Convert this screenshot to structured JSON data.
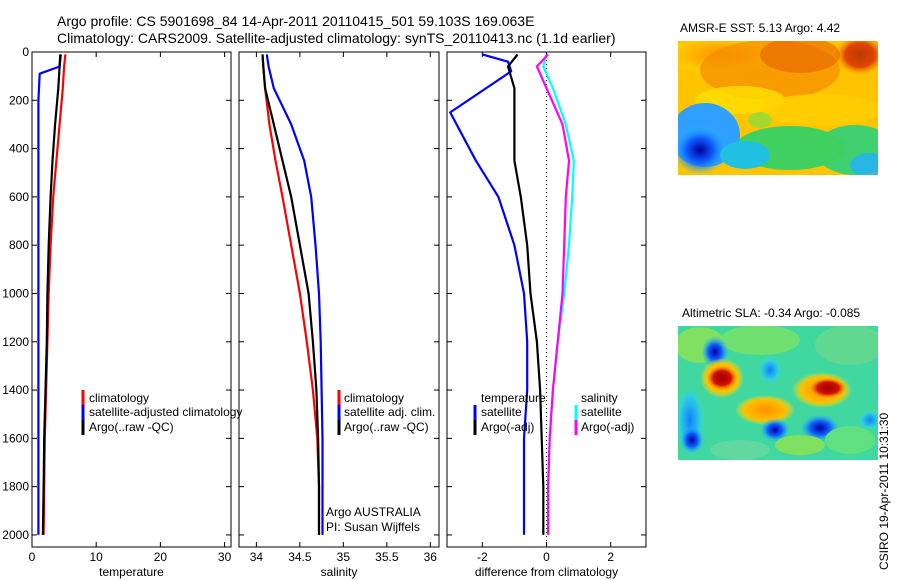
{
  "title_line1": "Argo profile: CS 5901698_84 14-Apr-2011 20110415_501 59.103S 169.063E",
  "title_line2": "Climatology: CARS2009. Satellite-adjusted climatology: synTS_20110413.nc (1.1d earlier)",
  "credit": "CSIRO 19-Apr-2011 10:31:30",
  "colors": {
    "red": "#ff0000",
    "blue": "#0000ff",
    "black": "#000000",
    "cyan": "#00ffff",
    "magenta": "#ff00ff"
  },
  "chart_data": [
    {
      "id": "temperature",
      "type": "line",
      "xlabel": "temperature",
      "ylabel": "",
      "xlim": [
        0,
        31
      ],
      "ylim": [
        2050,
        0
      ],
      "xticks": [
        0,
        10,
        20,
        30
      ],
      "yticks": [
        0,
        200,
        400,
        600,
        800,
        1000,
        1200,
        1400,
        1600,
        1800,
        2000
      ],
      "series": [
        {
          "name": "climatology",
          "color": "#ff0000",
          "x": [
            5.2,
            5.0,
            4.8,
            4.3,
            3.8,
            3.3,
            2.9,
            2.6,
            2.4,
            2.2,
            2.0,
            1.9,
            1.8
          ],
          "y": [
            10,
            60,
            150,
            300,
            450,
            600,
            800,
            1000,
            1200,
            1400,
            1600,
            1800,
            2000
          ]
        },
        {
          "name": "satellite-adjusted climatology",
          "color": "#0000ff",
          "x": [
            4.5,
            4.3,
            1.2,
            1.0,
            1.0,
            1.0,
            1.0,
            1.0,
            1.0,
            1.0,
            1.0,
            1.0
          ],
          "y": [
            10,
            60,
            90,
            200,
            400,
            600,
            800,
            1000,
            1200,
            1400,
            1700,
            2000
          ]
        },
        {
          "name": "Argo(..raw -QC)",
          "color": "#000000",
          "x": [
            4.4,
            4.3,
            4.1,
            3.6,
            3.2,
            2.9,
            2.6,
            2.4,
            2.3,
            2.1,
            1.9,
            1.8,
            1.7
          ],
          "y": [
            10,
            60,
            150,
            300,
            450,
            600,
            800,
            1000,
            1200,
            1400,
            1600,
            1800,
            2000
          ]
        }
      ]
    },
    {
      "id": "salinity",
      "type": "line",
      "xlabel": "salinity",
      "ylabel": "",
      "xlim": [
        33.8,
        36.1
      ],
      "ylim": [
        2050,
        0
      ],
      "xticks": [
        34,
        34.5,
        35,
        35.5,
        36
      ],
      "xticklabels": [
        "34",
        "34.5",
        "35",
        "35.5",
        "36"
      ],
      "annotation1": "Argo AUSTRALIA",
      "annotation2": "PI: Susan Wijffels",
      "series": [
        {
          "name": "climatology",
          "color": "#ff0000",
          "x": [
            34.07,
            34.08,
            34.1,
            34.15,
            34.22,
            34.3,
            34.4,
            34.5,
            34.58,
            34.65,
            34.7,
            34.72,
            34.72
          ],
          "y": [
            10,
            60,
            150,
            300,
            450,
            600,
            800,
            1000,
            1200,
            1400,
            1600,
            1800,
            2000
          ]
        },
        {
          "name": "satellite adj. clim.",
          "color": "#0000ff",
          "x": [
            34.12,
            34.14,
            34.2,
            34.4,
            34.55,
            34.63,
            34.68,
            34.72,
            34.74,
            34.75,
            34.76,
            34.76,
            34.76
          ],
          "y": [
            10,
            60,
            150,
            300,
            450,
            600,
            800,
            1000,
            1200,
            1400,
            1600,
            1800,
            2000
          ]
        },
        {
          "name": "Argo(..raw -QC)",
          "color": "#000000",
          "x": [
            34.07,
            34.08,
            34.1,
            34.2,
            34.3,
            34.4,
            34.5,
            34.6,
            34.65,
            34.69,
            34.71,
            34.72,
            34.72
          ],
          "y": [
            10,
            60,
            150,
            300,
            450,
            600,
            800,
            1000,
            1200,
            1400,
            1600,
            1800,
            2000
          ]
        }
      ]
    },
    {
      "id": "difference",
      "type": "line",
      "xlabel": "difference from climatology",
      "ylabel": "",
      "xlim": [
        -3.1,
        3.1
      ],
      "ylim": [
        2050,
        0
      ],
      "xticks": [
        -2,
        0,
        2
      ],
      "legend_temperature_heading": "temperature",
      "legend_salinity_heading": "salinity",
      "series": [
        {
          "name": "satellite",
          "group": "temperature",
          "color": "#0000ff",
          "x": [
            -2.0,
            -1.2,
            -1.1,
            -3.0,
            -2.2,
            -1.5,
            -1.0,
            -0.7,
            -0.6,
            -0.6,
            -0.7,
            -0.7,
            -0.7
          ],
          "y": [
            10,
            40,
            80,
            250,
            450,
            600,
            800,
            1000,
            1200,
            1400,
            1600,
            1800,
            2000
          ]
        },
        {
          "name": "Argo(-adj)",
          "group": "temperature",
          "color": "#000000",
          "x": [
            -0.9,
            -1.2,
            -1.0,
            -1.0,
            -1.0,
            -0.8,
            -0.6,
            -0.5,
            -0.3,
            -0.2,
            -0.15,
            -0.1,
            -0.1
          ],
          "y": [
            10,
            60,
            150,
            300,
            450,
            600,
            800,
            1000,
            1200,
            1400,
            1600,
            1800,
            2000
          ]
        },
        {
          "name": "satellite",
          "group": "salinity",
          "color": "#00ffff",
          "x": [
            0.0,
            -0.1,
            0.2,
            0.6,
            0.85,
            0.8,
            0.7,
            0.55,
            0.35,
            0.2,
            0.1,
            0.05,
            0.05
          ],
          "y": [
            10,
            60,
            150,
            300,
            450,
            600,
            800,
            1000,
            1200,
            1400,
            1600,
            1800,
            2000
          ]
        },
        {
          "name": "Argo(-adj)",
          "group": "salinity",
          "color": "#ff00ff",
          "x": [
            0.05,
            -0.3,
            0.0,
            0.5,
            0.7,
            0.6,
            0.55,
            0.5,
            0.35,
            0.2,
            0.1,
            0.05,
            0.05
          ],
          "y": [
            10,
            60,
            150,
            300,
            450,
            600,
            800,
            1000,
            1200,
            1400,
            1600,
            1800,
            2000
          ]
        }
      ]
    },
    {
      "id": "sst-map",
      "type": "heatmap",
      "title": "AMSR-E SST: 5.13 Argo: 4.42",
      "xlim": [
        158.6,
        179.2
      ],
      "ylim": [
        -65.3,
        -53.3
      ],
      "xticks": [
        160,
        165,
        170,
        175
      ],
      "yticks": [
        -54,
        -56,
        -58,
        -60,
        -62,
        -64
      ],
      "data_extent": {
        "lat_min": -60,
        "lat_max": -53.3
      },
      "float_position": {
        "lon": 169.063,
        "lat": -59.103
      }
    },
    {
      "id": "sla-map",
      "type": "heatmap",
      "title": "Altimetric SLA: -0.34 Argo: -0.085",
      "xlim": [
        158.6,
        179.2
      ],
      "ylim": [
        -65.3,
        -53.3
      ],
      "xticks": [
        160,
        165,
        170,
        175
      ],
      "yticks": [
        -54,
        -56,
        -58,
        -60,
        -62,
        -64
      ],
      "data_extent": {
        "lat_min": -60,
        "lat_max": -53.3
      },
      "float_position": {
        "lon": 169.063,
        "lat": -59.103
      }
    }
  ]
}
